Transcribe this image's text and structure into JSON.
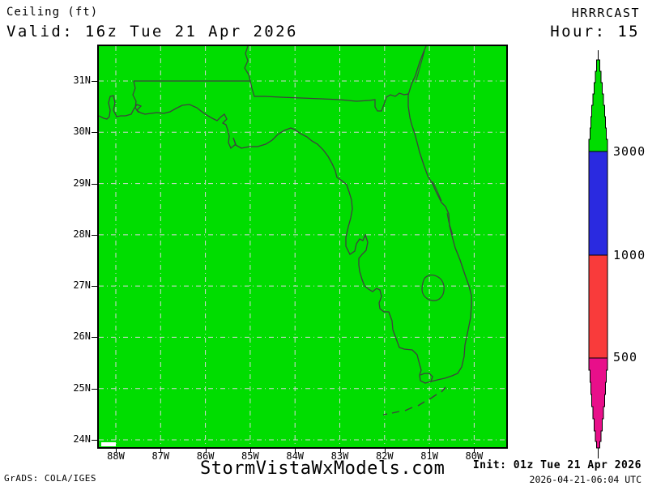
{
  "header": {
    "product": "Ceiling (ft)",
    "valid": "Valid: 16z Tue 21 Apr 2026",
    "model": "HRRRCAST",
    "hour": "Hour: 15"
  },
  "map": {
    "lat_labels": [
      "31N",
      "30N",
      "29N",
      "28N",
      "27N",
      "26N",
      "25N",
      "24N"
    ],
    "lon_labels": [
      "88W",
      "87W",
      "86W",
      "85W",
      "84W",
      "83W",
      "82W",
      "81W",
      "80W"
    ],
    "fill_color": "#00dd00",
    "coast_color": "#404040",
    "grid_color": "#d6d6d6",
    "field_note": "ceiling above 3000 ft (green) over entire domain"
  },
  "colorbar": {
    "labels": [
      "3000",
      "1000",
      "500"
    ],
    "thresholds_top_to_bottom": [
      3000,
      1000,
      500
    ],
    "colors": {
      "green": "#00dd00",
      "blue": "#2a2ae0",
      "red": "#f93b3b",
      "magenta": "#e80f8a"
    }
  },
  "footer": {
    "credit": "GrADS: COLA/IGES",
    "site": "StormVistaWxModels.com",
    "init": "Init: 01z Tue 21 Apr 2026",
    "generated": "2026-04-21-06:04 UTC"
  }
}
